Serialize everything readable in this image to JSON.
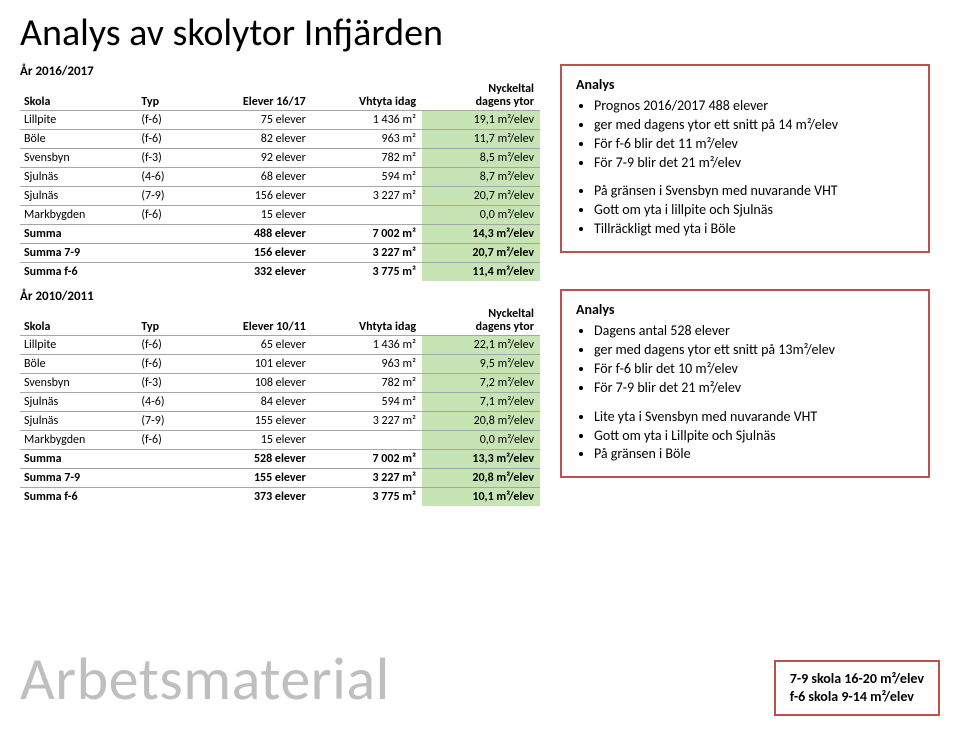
{
  "title": "Analys av skolytor Infjärden",
  "colors": {
    "cell_green": "#c6e4b4",
    "box_border": "#c0504d",
    "grid": "#a6a6a6",
    "watermark": "#bfbfbf"
  },
  "sections": [
    {
      "year_label": "År 2016/2017",
      "headers": {
        "skola": "Skola",
        "typ": "Typ",
        "elever": "Elever 16/17",
        "vht": "Vhtyta idag",
        "nyckeltal_l1": "Nyckeltal",
        "nyckeltal_l2": "dagens ytor"
      },
      "rows": [
        {
          "skola": "Lillpite",
          "typ": "(f-6)",
          "elever": "75 elever",
          "vht": "1 436 m²",
          "nyckeltal": "19,1 m²/elev",
          "green": true
        },
        {
          "skola": "Böle",
          "typ": "(f-6)",
          "elever": "82 elever",
          "vht": "963 m²",
          "nyckeltal": "11,7 m²/elev",
          "green": true
        },
        {
          "skola": "Svensbyn",
          "typ": "(f-3)",
          "elever": "92 elever",
          "vht": "782 m²",
          "nyckeltal": "8,5 m²/elev",
          "green": true
        },
        {
          "skola": "Sjulnäs",
          "typ": "(4-6)",
          "elever": "68 elever",
          "vht": "594 m²",
          "nyckeltal": "8,7 m²/elev",
          "green": true
        },
        {
          "skola": "Sjulnäs",
          "typ": "(7-9)",
          "elever": "156 elever",
          "vht": "3 227 m²",
          "nyckeltal": "20,7 m²/elev",
          "green": true
        },
        {
          "skola": "Markbygden",
          "typ": "(f-6)",
          "elever": "15 elever",
          "vht": "",
          "nyckeltal": "0,0 m²/elev",
          "green": true
        }
      ],
      "summaries": [
        {
          "skola": "Summa",
          "elever": "488 elever",
          "vht": "7 002 m²",
          "nyckeltal": "14,3 m²/elev",
          "green": true
        },
        {
          "skola": "Summa 7-9",
          "elever": "156 elever",
          "vht": "3 227 m²",
          "nyckeltal": "20,7 m²/elev",
          "green": true
        },
        {
          "skola": "Summa f-6",
          "elever": "332 elever",
          "vht": "3 775 m²",
          "nyckeltal": "11,4 m²/elev",
          "green": true
        }
      ],
      "analysis": {
        "heading": "Analys",
        "bullets_a": [
          "Prognos 2016/2017 488 elever",
          "ger med dagens ytor ett snitt på 14 m²/elev",
          "För f-6 blir det 11 m²/elev",
          "För 7-9 blir det 21 m²/elev"
        ],
        "bullets_b": [
          "På gränsen i Svensbyn med nuvarande VHT",
          "Gott om yta i lillpite och Sjulnäs",
          "Tillräckligt med yta i Böle"
        ]
      }
    },
    {
      "year_label": "År 2010/2011",
      "headers": {
        "skola": "Skola",
        "typ": "Typ",
        "elever": "Elever 10/11",
        "vht": "Vhtyta idag",
        "nyckeltal_l1": "Nyckeltal",
        "nyckeltal_l2": "dagens ytor"
      },
      "rows": [
        {
          "skola": "Lillpite",
          "typ": "(f-6)",
          "elever": "65 elever",
          "vht": "1 436 m²",
          "nyckeltal": "22,1 m²/elev",
          "green": true
        },
        {
          "skola": "Böle",
          "typ": "(f-6)",
          "elever": "101 elever",
          "vht": "963 m²",
          "nyckeltal": "9,5 m²/elev",
          "green": true
        },
        {
          "skola": "Svensbyn",
          "typ": "(f-3)",
          "elever": "108 elever",
          "vht": "782 m²",
          "nyckeltal": "7,2 m²/elev",
          "green": true
        },
        {
          "skola": "Sjulnäs",
          "typ": "(4-6)",
          "elever": "84 elever",
          "vht": "594 m²",
          "nyckeltal": "7,1 m²/elev",
          "green": true
        },
        {
          "skola": "Sjulnäs",
          "typ": "(7-9)",
          "elever": "155 elever",
          "vht": "3 227 m²",
          "nyckeltal": "20,8 m²/elev",
          "green": true
        },
        {
          "skola": "Markbygden",
          "typ": "(f-6)",
          "elever": "15 elever",
          "vht": "",
          "nyckeltal": "0,0 m²/elev",
          "green": true
        }
      ],
      "summaries": [
        {
          "skola": "Summa",
          "elever": "528 elever",
          "vht": "7 002 m²",
          "nyckeltal": "13,3 m²/elev",
          "green": true
        },
        {
          "skola": "Summa 7-9",
          "elever": "155 elever",
          "vht": "3 227 m²",
          "nyckeltal": "20,8 m²/elev",
          "green": true
        },
        {
          "skola": "Summa f-6",
          "elever": "373 elever",
          "vht": "3 775 m²",
          "nyckeltal": "10,1 m²/elev",
          "green": true
        }
      ],
      "analysis": {
        "heading": "Analys",
        "bullets_a": [
          "Dagens antal 528 elever",
          "ger med dagens ytor ett snitt på 13m²/elev",
          "För f-6 blir det 10 m²/elev",
          "För 7-9 blir det 21 m²/elev"
        ],
        "bullets_b": [
          "Lite yta i Svensbyn med nuvarande VHT",
          "Gott om yta i Lillpite och Sjulnäs",
          "På gränsen i Böle"
        ]
      }
    }
  ],
  "watermark": "Arbetsmaterial",
  "ref_box": {
    "line1": "7-9 skola 16-20 m²/elev",
    "line2": "f-6 skola 9-14 m²/elev"
  }
}
